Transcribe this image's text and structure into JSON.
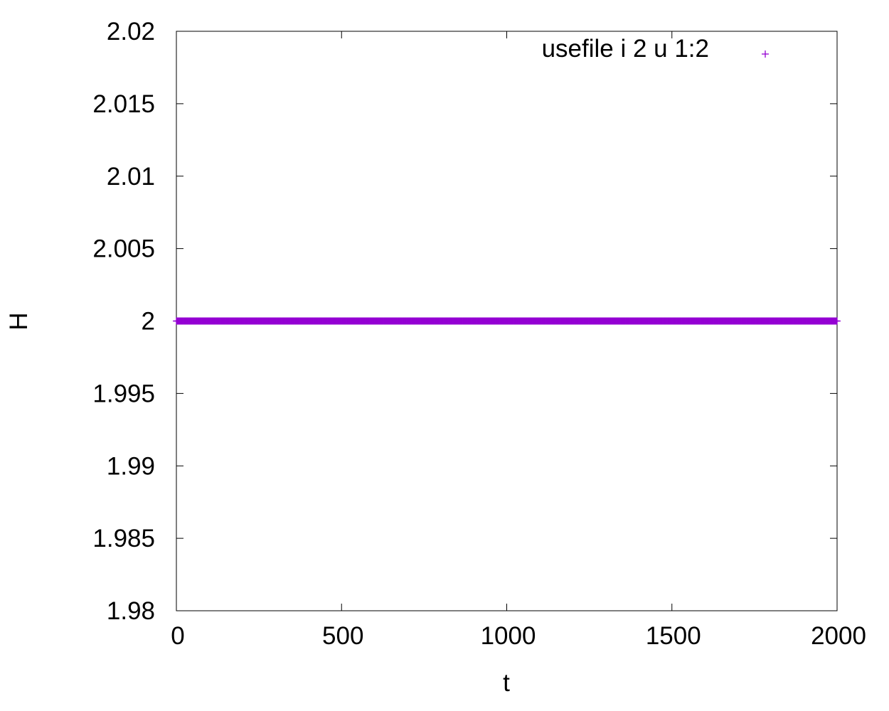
{
  "chart_data": {
    "type": "scatter",
    "xlabel": "t",
    "ylabel": "H",
    "xlim": [
      0,
      2000
    ],
    "ylim": [
      1.98,
      2.02
    ],
    "x_ticks": [
      0,
      500,
      1000,
      1500,
      2000
    ],
    "x_tick_labels": [
      "0",
      "500",
      "1000",
      "1500",
      "2000"
    ],
    "y_ticks": [
      1.98,
      1.985,
      1.99,
      1.995,
      2,
      2.005,
      2.01,
      2.015,
      2.02
    ],
    "y_tick_labels": [
      "1.98",
      "1.985",
      "1.99",
      "1.995",
      "2",
      "2.005",
      "2.01",
      "2.015",
      "2.02"
    ],
    "grid": false,
    "legend_position": "top-right",
    "series": [
      {
        "name": "usefile i 2 u 1:2",
        "marker": "plus",
        "color": "#9400d3",
        "x_range": [
          0,
          2000
        ],
        "x_step": 2,
        "y_constant": 2.0
      }
    ]
  }
}
